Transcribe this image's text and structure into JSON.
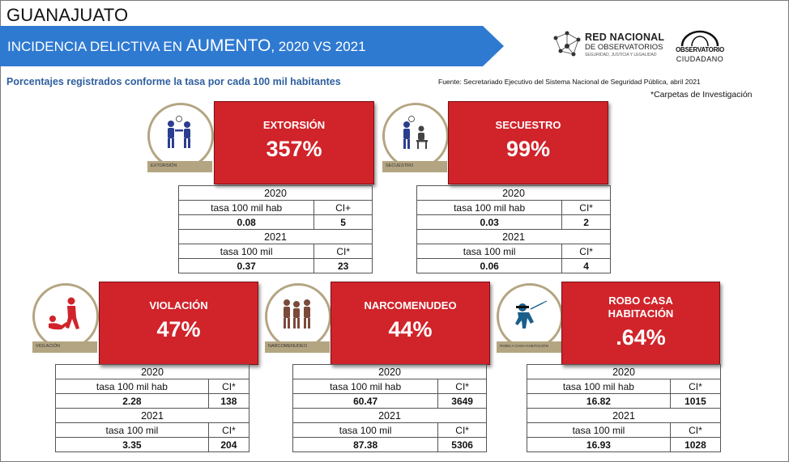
{
  "header": {
    "state": "GUANAJUATO",
    "banner_prefix": "INCIDENCIA DELICTIVA EN ",
    "banner_emphasis": "AUMENTO",
    "banner_suffix": ", 2020 VS 2021",
    "subtitle": "Porcentajes registrados conforme la tasa por cada 100 mil habitantes",
    "source": "Fuente: Secretariado Ejecutivo del Sistema Nacional de Seguridad Pública, abril 2021",
    "note": "*Carpetas de Investigación"
  },
  "logos": {
    "rno_line1": "RED NACIONAL",
    "rno_line2": "DE OBSERVATORIOS",
    "rno_line3": "SEGURIDAD, JUSTICIA Y LEGALIDAD",
    "oc_line1": "OBSERVATORIO",
    "oc_line2": "CIUDADANO"
  },
  "colors": {
    "banner": "#2f7ad1",
    "card": "#d1232a",
    "icon_ring": "#b4a582",
    "subtitle": "#2e5f9e"
  },
  "crimes": [
    {
      "id": "extorsion",
      "icon": "extortion-icon",
      "icon_label": "EXTORSIÓN",
      "name": "EXTORSIÓN",
      "percent": "357%",
      "year1": "2020",
      "rate_label1": "tasa 100 mil hab",
      "ci_label1": "CI+",
      "rate1": "0.08",
      "ci1": "5",
      "year2": "2021",
      "rate_label2": "tasa 100 mil",
      "ci_label2": "CI*",
      "rate2": "0.37",
      "ci2": "23"
    },
    {
      "id": "secuestro",
      "icon": "kidnapping-icon",
      "icon_label": "SECUESTRO",
      "name": "SECUESTRO",
      "percent": "99%",
      "year1": "2020",
      "rate_label1": "tasa 100 mil hab",
      "ci_label1": "CI*",
      "rate1": "0.03",
      "ci1": "2",
      "year2": "2021",
      "rate_label2": "tasa 100 mil",
      "ci_label2": "CI*",
      "rate2": "0.06",
      "ci2": "4"
    },
    {
      "id": "violacion",
      "icon": "assault-icon",
      "icon_label": "VIOLACIÓN",
      "name": "VIOLACIÓN",
      "percent": "47%",
      "year1": "2020",
      "rate_label1": "tasa 100 mil hab",
      "ci_label1": "CI*",
      "rate1": "2.28",
      "ci1": "138",
      "year2": "2021",
      "rate_label2": "tasa 100 mil",
      "ci_label2": "CI*",
      "rate2": "3.35",
      "ci2": "204"
    },
    {
      "id": "narcomenudeo",
      "icon": "drug-dealing-icon",
      "icon_label": "NARCOMENUDEO",
      "name": "NARCOMENUDEO",
      "percent": "44%",
      "year1": "2020",
      "rate_label1": "tasa 100 mil hab",
      "ci_label1": "CI*",
      "rate1": "60.47",
      "ci1": "3649",
      "year2": "2021",
      "rate_label2": "tasa 100 mil",
      "ci_label2": "CI*",
      "rate2": "87.38",
      "ci2": "5306"
    },
    {
      "id": "robo-casa",
      "icon": "burglary-icon",
      "icon_label": "ROBO A CASA HABITACIÓN",
      "name_line1": "ROBO CASA",
      "name_line2": "HABITACIÓN",
      "percent": ".64%",
      "year1": "2020",
      "rate_label1": "tasa 100 mil hab",
      "ci_label1": "CI*",
      "rate1": "16.82",
      "ci1": "1015",
      "year2": "2021",
      "rate_label2": "tasa 100 mil",
      "ci_label2": "CI*",
      "rate2": "16.93",
      "ci2": "1028"
    }
  ]
}
